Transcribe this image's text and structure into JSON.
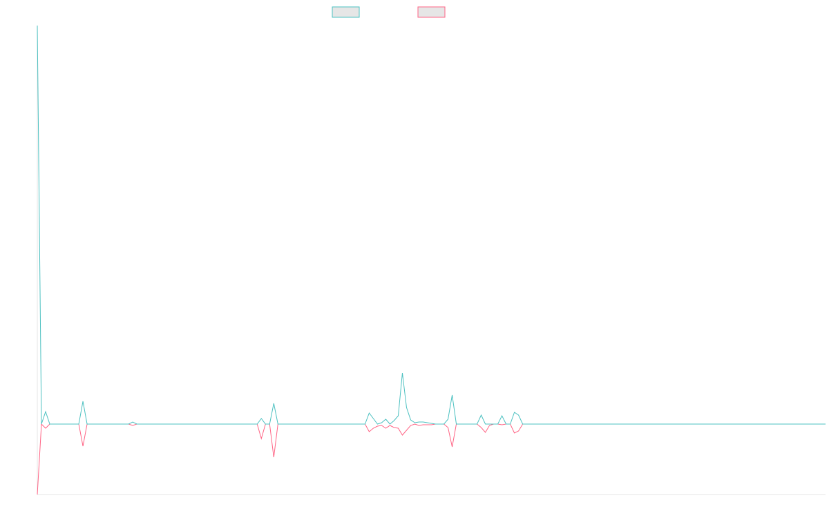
{
  "chart_data": {
    "type": "line",
    "ylim": [
      -102,
      577
    ],
    "series": [
      {
        "color": "#4bc0c0",
        "values": [
          577,
          0,
          18,
          0,
          0,
          0,
          0,
          0,
          0,
          0,
          0,
          33,
          0,
          0,
          0,
          0,
          0,
          0,
          0,
          0,
          0,
          0,
          0,
          3,
          0,
          0,
          0,
          0,
          0,
          0,
          0,
          0,
          0,
          0,
          0,
          0,
          0,
          0,
          0,
          0,
          0,
          0,
          0,
          0,
          0,
          0,
          0,
          0,
          0,
          0,
          0,
          0,
          0,
          0,
          8,
          0,
          0,
          30,
          0,
          0,
          0,
          0,
          0,
          0,
          0,
          0,
          0,
          0,
          0,
          0,
          0,
          0,
          0,
          0,
          0,
          0,
          0,
          0,
          0,
          0,
          16,
          8,
          0,
          2,
          7,
          0,
          5,
          12,
          74,
          24,
          6,
          2,
          3,
          3,
          2,
          1,
          0,
          0,
          0,
          7,
          42,
          0,
          0,
          0,
          0,
          0,
          0,
          13,
          0,
          0,
          0,
          0,
          12,
          0,
          0,
          17,
          13,
          0,
          0,
          0,
          0,
          0,
          0,
          0,
          0,
          0,
          0,
          0,
          0,
          0,
          0,
          0,
          0,
          0,
          0,
          0,
          0,
          0,
          0,
          0,
          0,
          0,
          0,
          0,
          0,
          0,
          0,
          0,
          0,
          0,
          0,
          0,
          0,
          0,
          0,
          0,
          0,
          0,
          0,
          0,
          0,
          0,
          0,
          0,
          0,
          0,
          0,
          0,
          0,
          0,
          0,
          0,
          0,
          0,
          0,
          0,
          0,
          0,
          0,
          0,
          0,
          0,
          0,
          0,
          0,
          0,
          0,
          0,
          0,
          0,
          0
        ]
      },
      {
        "color": "#ff6384",
        "values": [
          -102,
          0,
          -6,
          0,
          0,
          0,
          0,
          0,
          0,
          0,
          0,
          -32,
          0,
          0,
          0,
          0,
          0,
          0,
          0,
          0,
          0,
          0,
          0,
          -2,
          0,
          0,
          0,
          0,
          0,
          0,
          0,
          0,
          0,
          0,
          0,
          0,
          0,
          0,
          0,
          0,
          0,
          0,
          0,
          0,
          0,
          0,
          0,
          0,
          0,
          0,
          0,
          0,
          0,
          0,
          -21,
          0,
          0,
          -48,
          0,
          0,
          0,
          0,
          0,
          0,
          0,
          0,
          0,
          0,
          0,
          0,
          0,
          0,
          0,
          0,
          0,
          0,
          0,
          0,
          0,
          0,
          -11,
          -6,
          -3,
          -2,
          -6,
          -2,
          -5,
          -6,
          -16,
          -9,
          -2,
          0,
          -2,
          -1,
          -1,
          -1,
          0,
          0,
          0,
          -5,
          -33,
          0,
          0,
          0,
          0,
          0,
          0,
          -5,
          -12,
          -2,
          0,
          0,
          -1,
          0,
          0,
          -13,
          -10,
          0,
          0,
          0,
          0,
          0,
          0,
          0,
          0,
          0,
          0,
          0,
          0,
          0,
          0,
          0,
          0,
          0,
          0,
          0,
          0,
          0,
          0,
          0,
          0,
          0,
          0,
          0,
          0,
          0,
          0,
          0,
          0,
          0,
          0,
          0,
          0,
          0,
          0,
          0,
          0,
          0,
          0,
          0,
          0,
          0,
          0,
          0,
          0,
          0,
          0,
          0,
          0,
          0,
          0,
          0,
          0,
          0,
          0,
          0,
          0,
          0,
          0,
          0,
          0,
          0,
          0,
          0,
          0,
          0,
          0,
          0,
          0,
          0,
          0
        ]
      }
    ]
  }
}
